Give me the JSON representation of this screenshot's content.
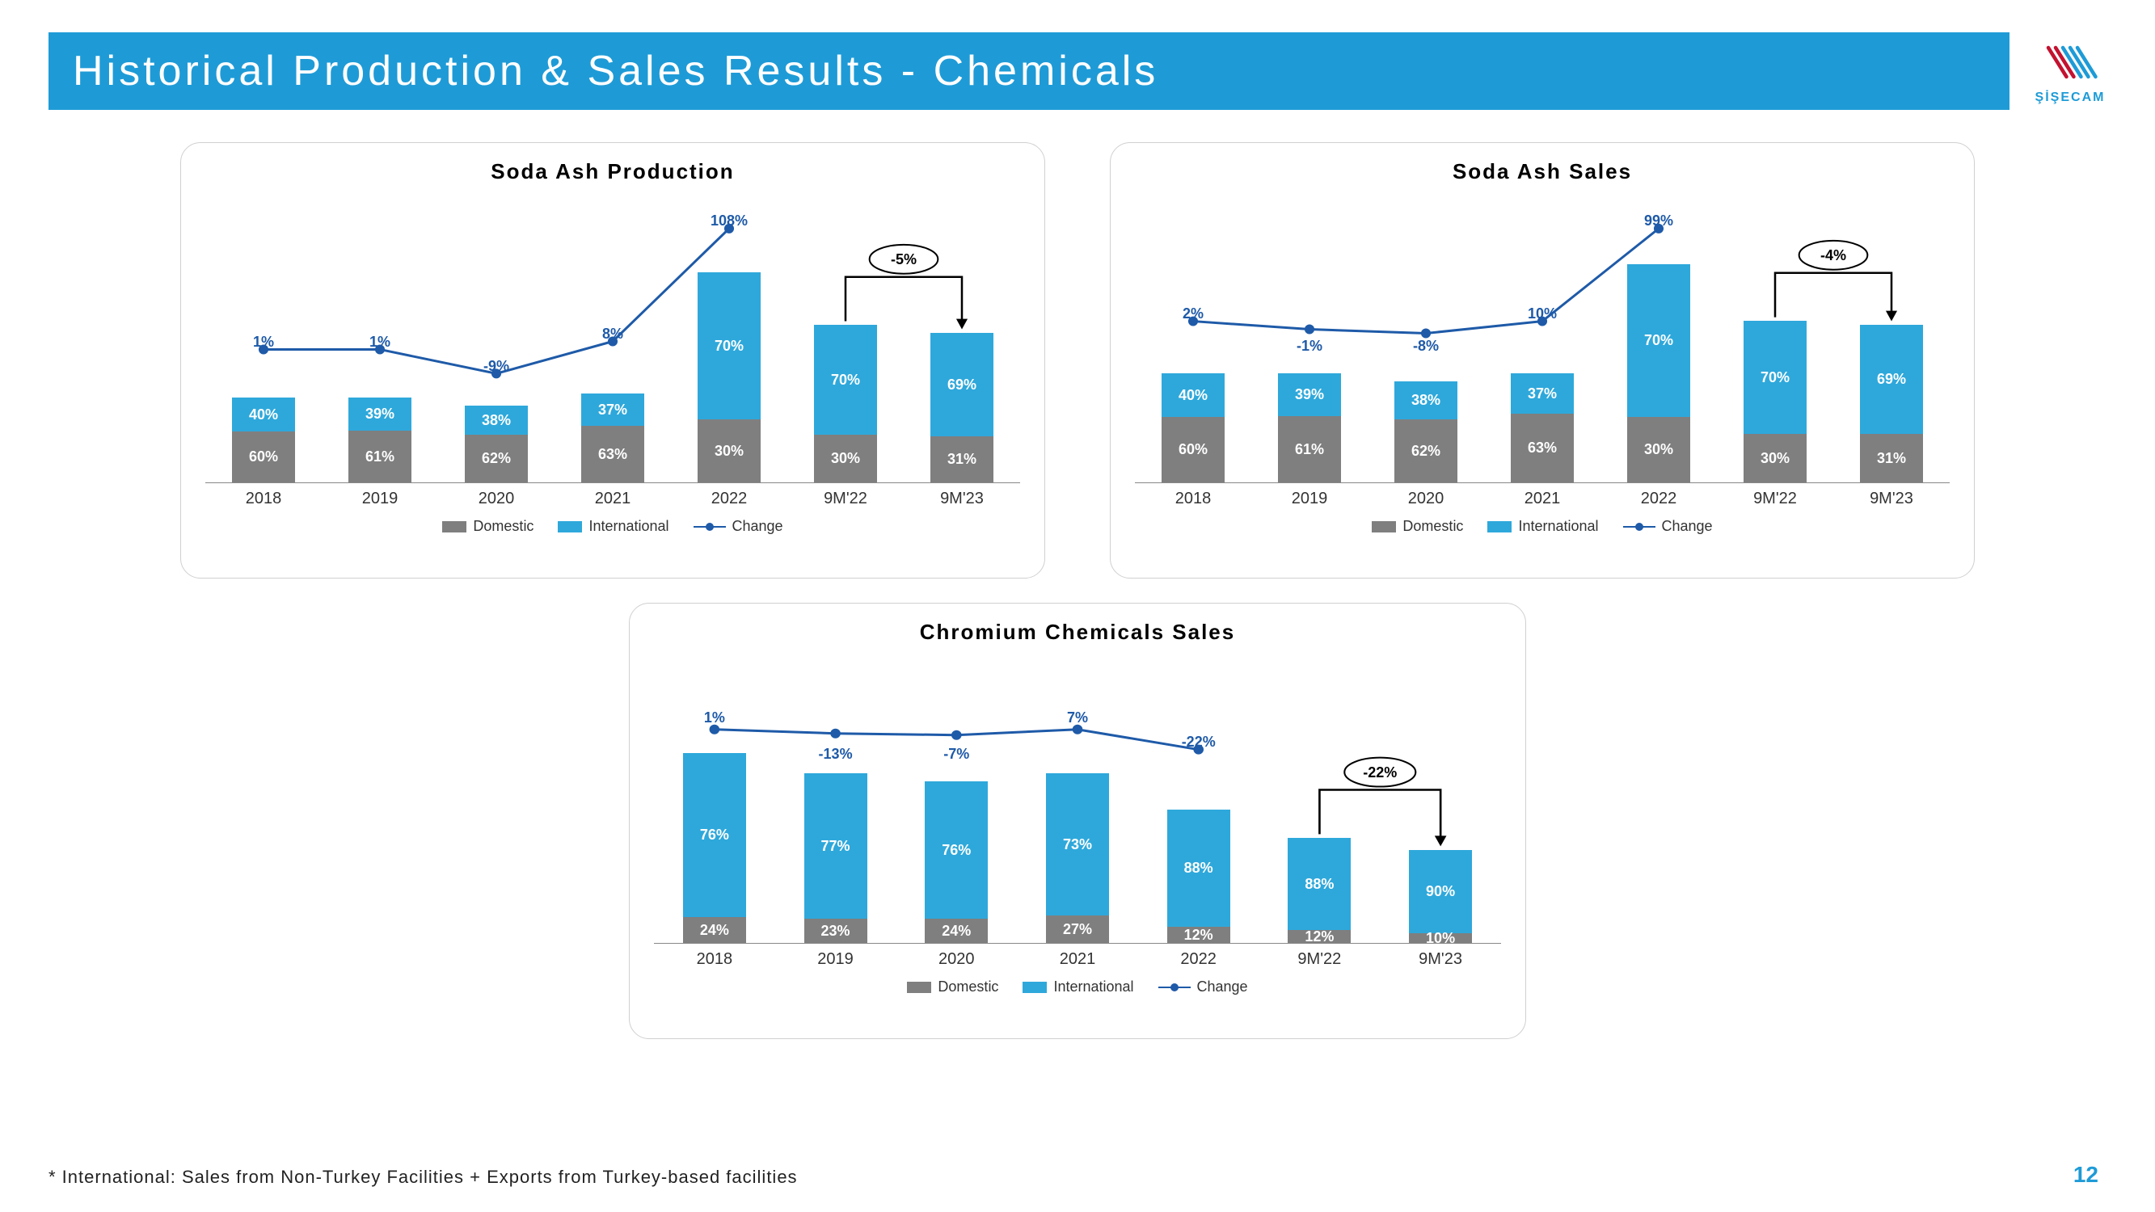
{
  "title": "Historical Production & Sales Results - Chemicals",
  "logo_text": "ŞİŞECAM",
  "footnote": "* International: Sales from Non-Turkey Facilities + Exports from Turkey-based facilities",
  "page_number": "12",
  "colors": {
    "brand": "#1e9bd7",
    "domestic": "#7f7f7f",
    "international": "#2ea8db",
    "line": "#1e5aa8",
    "text": "#000000"
  },
  "legend": {
    "domestic": "Domestic",
    "international": "International",
    "change": "Change"
  },
  "charts": [
    {
      "id": "soda-ash-production",
      "title": "Soda Ash Production",
      "categories": [
        "2018",
        "2019",
        "2020",
        "2021",
        "2022",
        "9M'22",
        "9M'23"
      ],
      "domestic": [
        "60%",
        "61%",
        "62%",
        "63%",
        "30%",
        "30%",
        "31%"
      ],
      "international": [
        "40%",
        "39%",
        "38%",
        "37%",
        "70%",
        "70%",
        "69%"
      ],
      "heights": [
        105,
        105,
        95,
        110,
        260,
        195,
        185
      ],
      "dom_h": [
        63,
        64,
        59,
        70,
        78,
        59,
        57
      ],
      "intl_h": [
        42,
        41,
        36,
        40,
        182,
        136,
        128
      ],
      "change_labels": [
        "1%",
        "1%",
        "-9%",
        "8%",
        "108%"
      ],
      "change_y": [
        175,
        175,
        205,
        165,
        25
      ],
      "line_y": [
        195,
        195,
        225,
        185,
        45
      ],
      "bracket_label": "-5%"
    },
    {
      "id": "soda-ash-sales",
      "title": "Soda Ash Sales",
      "categories": [
        "2018",
        "2019",
        "2020",
        "2021",
        "2022",
        "9M'22",
        "9M'23"
      ],
      "domestic": [
        "60%",
        "61%",
        "62%",
        "63%",
        "30%",
        "30%",
        "31%"
      ],
      "international": [
        "40%",
        "39%",
        "38%",
        "37%",
        "70%",
        "70%",
        "69%"
      ],
      "heights": [
        135,
        135,
        125,
        135,
        270,
        200,
        195
      ],
      "dom_h": [
        81,
        82,
        78,
        85,
        81,
        60,
        60
      ],
      "intl_h": [
        54,
        53,
        47,
        50,
        189,
        140,
        135
      ],
      "change_labels": [
        "2%",
        "-1%",
        "-8%",
        "10%",
        "99%"
      ],
      "change_y": [
        140,
        180,
        180,
        140,
        25
      ],
      "line_y": [
        160,
        170,
        175,
        160,
        45
      ],
      "bracket_label": "-4%"
    },
    {
      "id": "chromium-sales",
      "title": "Chromium Chemicals Sales",
      "categories": [
        "2018",
        "2019",
        "2020",
        "2021",
        "2022",
        "9M'22",
        "9M'23"
      ],
      "domestic": [
        "24%",
        "23%",
        "24%",
        "27%",
        "12%",
        "12%",
        "10%"
      ],
      "international": [
        "76%",
        "77%",
        "76%",
        "73%",
        "88%",
        "88%",
        "90%"
      ],
      "heights": [
        235,
        210,
        200,
        210,
        165,
        130,
        115
      ],
      "dom_h": [
        32,
        30,
        30,
        34,
        20,
        16,
        12
      ],
      "intl_h": [
        203,
        180,
        170,
        176,
        145,
        114,
        103
      ],
      "change_labels": [
        "1%",
        "-13%",
        "-7%",
        "7%",
        "-22%"
      ],
      "change_y": [
        70,
        115,
        115,
        70,
        100
      ],
      "line_y": [
        95,
        100,
        102,
        95,
        120
      ],
      "bracket_label": "-22%"
    }
  ]
}
